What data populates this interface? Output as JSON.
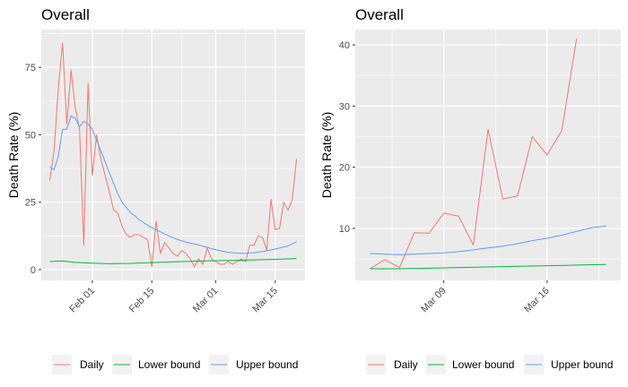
{
  "colors": {
    "daily": "#F8766D",
    "lower": "#00BA38",
    "upper": "#619CFF",
    "panel_bg": "#EBEBEB",
    "grid": "#FFFFFF"
  },
  "chart_data": [
    {
      "type": "line",
      "title": "Overall",
      "xlabel": "",
      "ylabel": "Death Rate (%)",
      "x_axis": "date",
      "xlim": [
        "2020-01-20",
        "2020-03-22"
      ],
      "ylim": [
        -4,
        89
      ],
      "grid": true,
      "x_ticks": [
        {
          "date": "2020-02-01",
          "label": "Feb 01"
        },
        {
          "date": "2020-02-15",
          "label": "Feb 15"
        },
        {
          "date": "2020-03-01",
          "label": "Mar 01"
        },
        {
          "date": "2020-03-15",
          "label": "Mar 15"
        }
      ],
      "y_ticks": [
        0,
        25,
        50,
        75
      ],
      "legend_position": "bottom",
      "series": [
        {
          "name": "Daily",
          "color": "#F8766D",
          "points": [
            [
              "2020-01-22",
              33
            ],
            [
              "2020-01-23",
              44
            ],
            [
              "2020-01-24",
              67
            ],
            [
              "2020-01-25",
              84
            ],
            [
              "2020-01-26",
              54
            ],
            [
              "2020-01-27",
              74
            ],
            [
              "2020-01-28",
              60
            ],
            [
              "2020-01-29",
              52
            ],
            [
              "2020-01-30",
              9
            ],
            [
              "2020-01-31",
              69
            ],
            [
              "2020-02-01",
              35
            ],
            [
              "2020-02-02",
              50
            ],
            [
              "2020-02-03",
              41
            ],
            [
              "2020-02-04",
              35
            ],
            [
              "2020-02-05",
              29
            ],
            [
              "2020-02-06",
              22
            ],
            [
              "2020-02-07",
              21
            ],
            [
              "2020-02-08",
              16
            ],
            [
              "2020-02-09",
              13
            ],
            [
              "2020-02-10",
              12
            ],
            [
              "2020-02-11",
              13
            ],
            [
              "2020-02-12",
              13
            ],
            [
              "2020-02-13",
              12
            ],
            [
              "2020-02-14",
              11
            ],
            [
              "2020-02-15",
              1
            ],
            [
              "2020-02-16",
              18
            ],
            [
              "2020-02-17",
              6
            ],
            [
              "2020-02-18",
              10
            ],
            [
              "2020-02-19",
              8
            ],
            [
              "2020-02-20",
              6
            ],
            [
              "2020-02-21",
              5
            ],
            [
              "2020-02-22",
              7
            ],
            [
              "2020-02-23",
              6
            ],
            [
              "2020-02-24",
              4
            ],
            [
              "2020-02-25",
              1
            ],
            [
              "2020-02-26",
              4
            ],
            [
              "2020-02-27",
              2
            ],
            [
              "2020-02-28",
              8
            ],
            [
              "2020-02-29",
              4
            ],
            [
              "2020-03-01",
              3
            ],
            [
              "2020-03-02",
              2
            ],
            [
              "2020-03-03",
              2
            ],
            [
              "2020-03-04",
              3
            ],
            [
              "2020-03-05",
              2
            ],
            [
              "2020-03-06",
              3
            ],
            [
              "2020-03-07",
              4
            ],
            [
              "2020-03-08",
              3
            ],
            [
              "2020-03-09",
              9
            ],
            [
              "2020-03-10",
              9
            ],
            [
              "2020-03-11",
              12.5
            ],
            [
              "2020-03-12",
              12
            ],
            [
              "2020-03-13",
              7.3
            ],
            [
              "2020-03-14",
              26
            ],
            [
              "2020-03-15",
              14.8
            ],
            [
              "2020-03-16",
              15.3
            ],
            [
              "2020-03-17",
              25
            ],
            [
              "2020-03-18",
              22
            ],
            [
              "2020-03-19",
              26
            ],
            [
              "2020-03-20",
              41
            ]
          ]
        },
        {
          "name": "Lower bound",
          "color": "#00BA38",
          "points": [
            [
              "2020-01-22",
              3
            ],
            [
              "2020-01-25",
              3.2
            ],
            [
              "2020-01-28",
              2.7
            ],
            [
              "2020-02-01",
              2.4
            ],
            [
              "2020-02-05",
              2.2
            ],
            [
              "2020-02-10",
              2.3
            ],
            [
              "2020-02-15",
              2.6
            ],
            [
              "2020-02-20",
              2.9
            ],
            [
              "2020-02-25",
              3.1
            ],
            [
              "2020-03-01",
              3.3
            ],
            [
              "2020-03-05",
              3.4
            ],
            [
              "2020-03-10",
              3.6
            ],
            [
              "2020-03-15",
              3.8
            ],
            [
              "2020-03-20",
              4.1
            ]
          ]
        },
        {
          "name": "Upper bound",
          "color": "#619CFF",
          "points": [
            [
              "2020-01-22",
              38
            ],
            [
              "2020-01-23",
              37
            ],
            [
              "2020-01-24",
              42
            ],
            [
              "2020-01-25",
              52
            ],
            [
              "2020-01-26",
              52
            ],
            [
              "2020-01-27",
              57
            ],
            [
              "2020-01-28",
              56
            ],
            [
              "2020-01-29",
              53
            ],
            [
              "2020-01-30",
              55
            ],
            [
              "2020-01-31",
              54
            ],
            [
              "2020-02-01",
              52
            ],
            [
              "2020-02-02",
              48
            ],
            [
              "2020-02-03",
              44
            ],
            [
              "2020-02-04",
              40
            ],
            [
              "2020-02-05",
              36
            ],
            [
              "2020-02-06",
              32
            ],
            [
              "2020-02-07",
              28
            ],
            [
              "2020-02-08",
              25
            ],
            [
              "2020-02-09",
              23
            ],
            [
              "2020-02-10",
              21
            ],
            [
              "2020-02-11",
              20
            ],
            [
              "2020-02-12",
              18.5
            ],
            [
              "2020-02-13",
              17.5
            ],
            [
              "2020-02-14",
              16.5
            ],
            [
              "2020-02-15",
              15.5
            ],
            [
              "2020-02-17",
              14
            ],
            [
              "2020-02-19",
              12.5
            ],
            [
              "2020-02-21",
              11.2
            ],
            [
              "2020-02-23",
              10.2
            ],
            [
              "2020-02-25",
              9.5
            ],
            [
              "2020-02-27",
              8.7
            ],
            [
              "2020-02-29",
              7.8
            ],
            [
              "2020-03-02",
              7.0
            ],
            [
              "2020-03-04",
              6.4
            ],
            [
              "2020-03-06",
              6.1
            ],
            [
              "2020-03-08",
              6.0
            ],
            [
              "2020-03-10",
              6.3
            ],
            [
              "2020-03-12",
              6.7
            ],
            [
              "2020-03-14",
              7.3
            ],
            [
              "2020-03-16",
              8.0
            ],
            [
              "2020-03-18",
              8.8
            ],
            [
              "2020-03-20",
              10.3
            ]
          ]
        }
      ]
    },
    {
      "type": "line",
      "title": "Overall",
      "xlabel": "",
      "ylabel": "Death Rate (%)",
      "x_axis": "date",
      "xlim": [
        "2020-03-03",
        "2020-03-21"
      ],
      "ylim": [
        1.5,
        42.5
      ],
      "grid": true,
      "x_ticks": [
        {
          "date": "2020-03-09",
          "label": "Mar 09"
        },
        {
          "date": "2020-03-16",
          "label": "Mar 16"
        }
      ],
      "y_ticks": [
        10,
        20,
        30,
        40
      ],
      "legend_position": "bottom",
      "series": [
        {
          "name": "Daily",
          "color": "#F8766D",
          "points": [
            [
              "2020-03-04",
              3.4
            ],
            [
              "2020-03-05",
              4.9
            ],
            [
              "2020-03-06",
              3.6
            ],
            [
              "2020-03-07",
              9.3
            ],
            [
              "2020-03-08",
              9.2
            ],
            [
              "2020-03-09",
              12.5
            ],
            [
              "2020-03-10",
              12.0
            ],
            [
              "2020-03-11",
              7.3
            ],
            [
              "2020-03-12",
              26.2
            ],
            [
              "2020-03-13",
              14.8
            ],
            [
              "2020-03-14",
              15.3
            ],
            [
              "2020-03-15",
              25.0
            ],
            [
              "2020-03-16",
              22.0
            ],
            [
              "2020-03-17",
              26.0
            ],
            [
              "2020-03-18",
              41.0
            ]
          ]
        },
        {
          "name": "Lower bound",
          "color": "#00BA38",
          "points": [
            [
              "2020-03-04",
              3.4
            ],
            [
              "2020-03-06",
              3.4
            ],
            [
              "2020-03-08",
              3.5
            ],
            [
              "2020-03-10",
              3.6
            ],
            [
              "2020-03-12",
              3.7
            ],
            [
              "2020-03-14",
              3.8
            ],
            [
              "2020-03-16",
              3.9
            ],
            [
              "2020-03-18",
              4.0
            ],
            [
              "2020-03-20",
              4.1
            ]
          ]
        },
        {
          "name": "Upper bound",
          "color": "#619CFF",
          "points": [
            [
              "2020-03-04",
              5.9
            ],
            [
              "2020-03-05",
              5.8
            ],
            [
              "2020-03-06",
              5.7
            ],
            [
              "2020-03-07",
              5.8
            ],
            [
              "2020-03-08",
              5.9
            ],
            [
              "2020-03-09",
              6.0
            ],
            [
              "2020-03-10",
              6.2
            ],
            [
              "2020-03-11",
              6.5
            ],
            [
              "2020-03-12",
              6.8
            ],
            [
              "2020-03-13",
              7.1
            ],
            [
              "2020-03-14",
              7.5
            ],
            [
              "2020-03-15",
              8.0
            ],
            [
              "2020-03-16",
              8.4
            ],
            [
              "2020-03-17",
              8.9
            ],
            [
              "2020-03-18",
              9.5
            ],
            [
              "2020-03-19",
              10.1
            ],
            [
              "2020-03-20",
              10.4
            ]
          ]
        }
      ]
    }
  ]
}
